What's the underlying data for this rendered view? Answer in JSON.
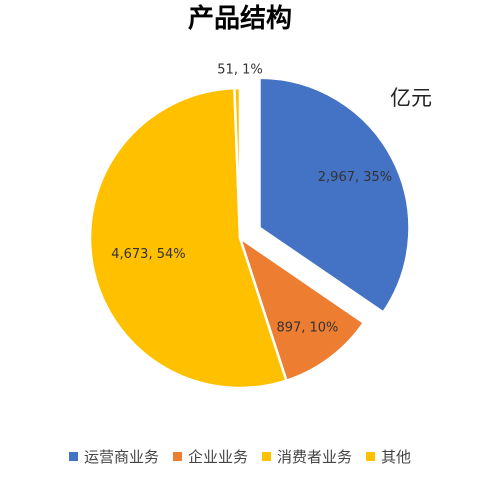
{
  "chart_data": {
    "type": "pie",
    "title": "产品结构",
    "unit": "亿元",
    "legend_position": "bottom",
    "slices": [
      {
        "name": "运营商业务",
        "value": 2967,
        "value_label": "2,967",
        "percent_label": "35%",
        "color": "#4472C4"
      },
      {
        "name": "企业业务",
        "value": 897,
        "value_label": "897",
        "percent_label": "10%",
        "color": "#ED7D31"
      },
      {
        "name": "消费者业务",
        "value": 4673,
        "value_label": "4,673",
        "percent_label": "54%",
        "color": "#FFC000"
      },
      {
        "name": "其他",
        "value": 51,
        "value_label": "51",
        "percent_label": "1%",
        "color": "#FFC000"
      }
    ]
  }
}
